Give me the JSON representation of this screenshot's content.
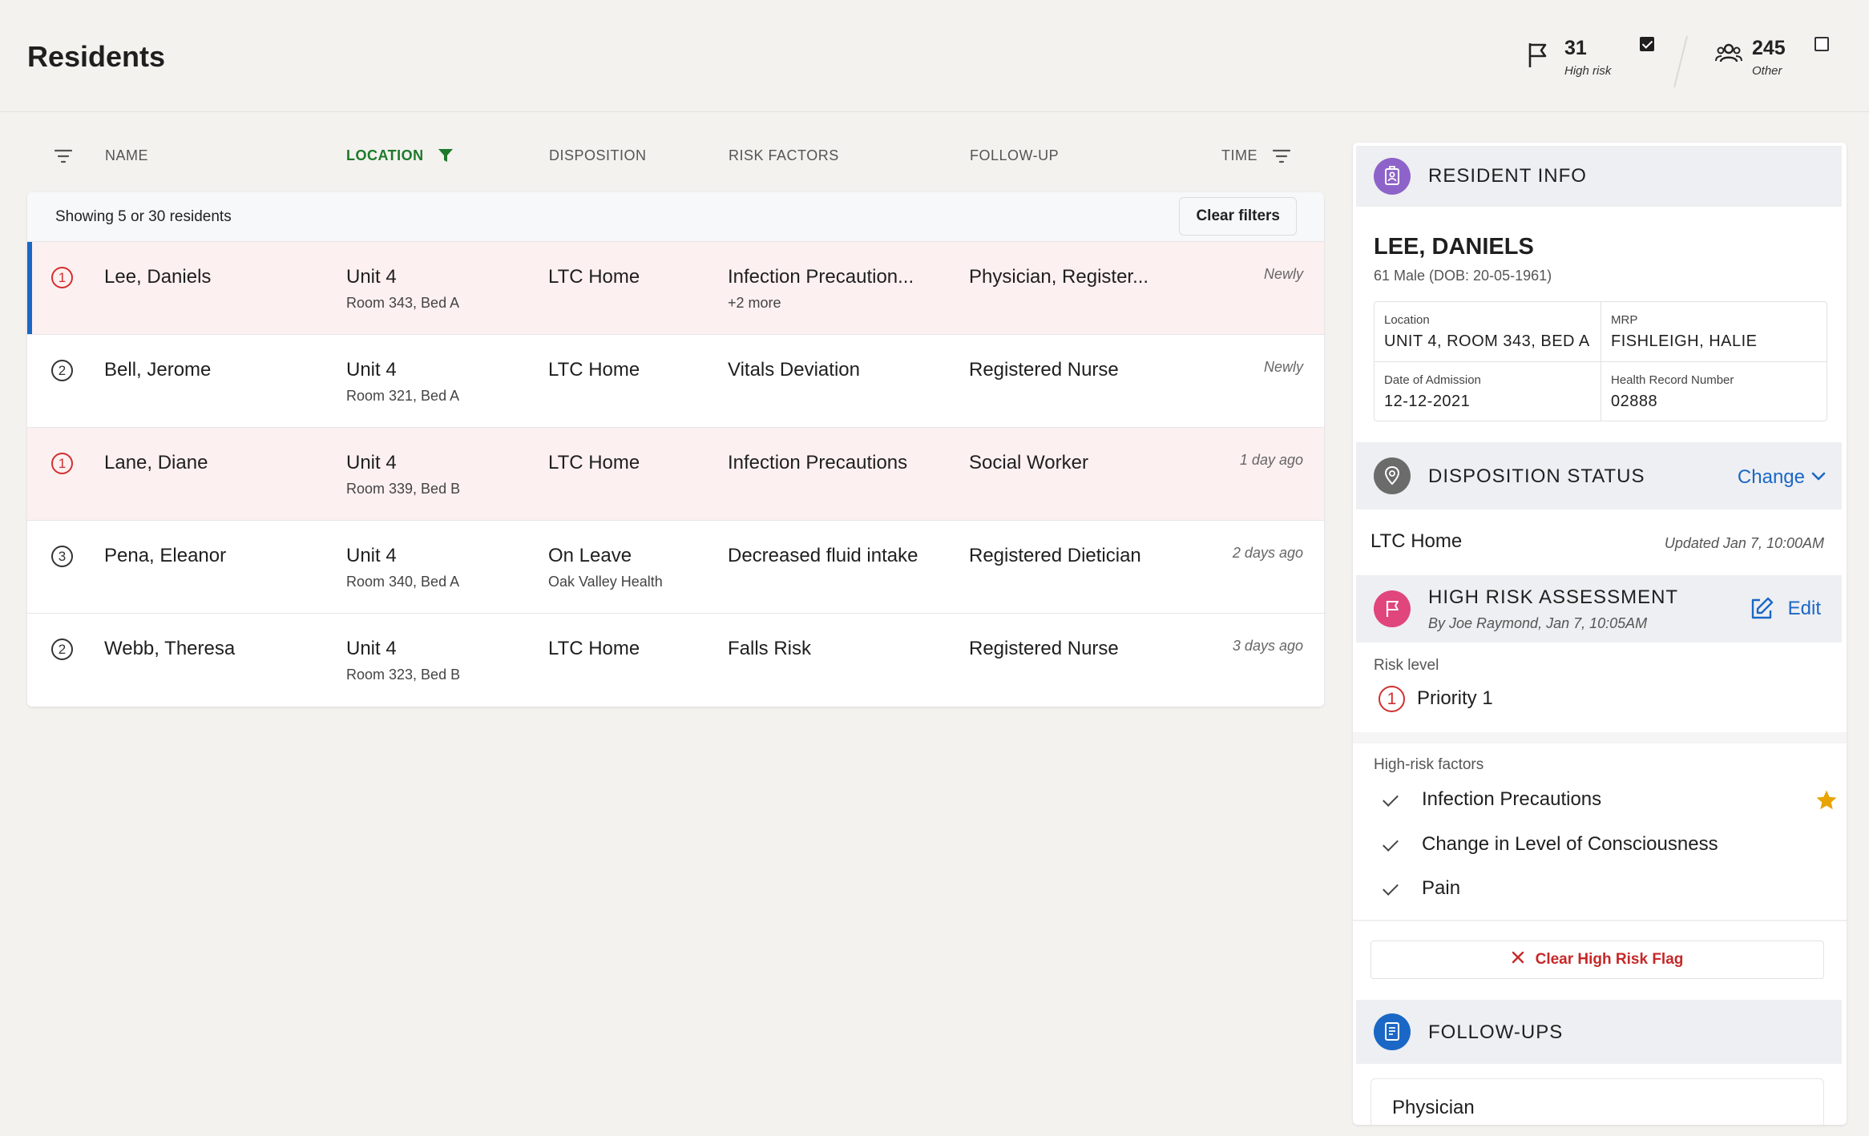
{
  "header": {
    "title": "Residents",
    "high_risk": {
      "count": "31",
      "label": "High risk",
      "checked": true,
      "icon": "flag-icon"
    },
    "other": {
      "count": "245",
      "label": "Other",
      "checked": false,
      "icon": "people-icon"
    }
  },
  "table": {
    "columns": {
      "name": "NAME",
      "location": "LOCATION",
      "disposition": "DISPOSITION",
      "risk_factors": "RISK FACTORS",
      "follow_up": "FOLLOW-UP",
      "time": "TIME"
    },
    "active_filter_column": "location",
    "showing": "Showing 5 or 30 residents",
    "clear_filters": "Clear filters",
    "rows": [
      {
        "priority": "1",
        "name": "Lee, Daniels",
        "unit": "Unit 4",
        "room": "Room 343, Bed A",
        "disposition": "LTC Home",
        "disposition_sub": "",
        "risk": "Infection Precaution...",
        "risk_more": "+2 more",
        "follow_up": "Physician, Register...",
        "time": "Newly",
        "flagged": true,
        "selected": true
      },
      {
        "priority": "2",
        "name": "Bell, Jerome",
        "unit": "Unit 4",
        "room": "Room 321, Bed A",
        "disposition": "LTC Home",
        "disposition_sub": "",
        "risk": "Vitals Deviation",
        "risk_more": "",
        "follow_up": "Registered Nurse",
        "time": "Newly",
        "flagged": false,
        "selected": false
      },
      {
        "priority": "1",
        "name": "Lane, Diane",
        "unit": "Unit 4",
        "room": "Room 339, Bed B",
        "disposition": "LTC Home",
        "disposition_sub": "",
        "risk": "Infection Precautions",
        "risk_more": "",
        "follow_up": "Social Worker",
        "time": "1 day ago",
        "flagged": true,
        "selected": false
      },
      {
        "priority": "3",
        "name": "Pena, Eleanor",
        "unit": "Unit 4",
        "room": "Room 340, Bed A",
        "disposition": "On Leave",
        "disposition_sub": "Oak Valley Health",
        "risk": "Decreased fluid intake",
        "risk_more": "",
        "follow_up": "Registered Dietician",
        "time": "2 days ago",
        "flagged": false,
        "selected": false
      },
      {
        "priority": "2",
        "name": "Webb, Theresa",
        "unit": "Unit 4",
        "room": "Room 323, Bed B",
        "disposition": "LTC Home",
        "disposition_sub": "",
        "risk": "Falls Risk",
        "risk_more": "",
        "follow_up": "Registered Nurse",
        "time": "3 days ago",
        "flagged": false,
        "selected": false
      }
    ]
  },
  "panel": {
    "resident_info": {
      "title": "RESIDENT INFO",
      "name": "LEE, DANIELS",
      "demographics": "61 Male (DOB: 20-05-1961)",
      "location_label": "Location",
      "location_value": "UNIT 4, ROOM 343, BED A",
      "mrp_label": "MRP",
      "mrp_value": "FISHLEIGH, HALIE",
      "admission_label": "Date of Admission",
      "admission_value": "12-12-2021",
      "hrn_label": "Health Record Number",
      "hrn_value": "02888"
    },
    "disposition": {
      "title": "DISPOSITION STATUS",
      "change_label": "Change",
      "value": "LTC Home",
      "updated": "Updated Jan 7, 10:00AM"
    },
    "assessment": {
      "title": "HIGH RISK ASSESSMENT",
      "by": "By Joe Raymond, Jan 7, 10:05AM",
      "edit_label": "Edit",
      "risk_level_label": "Risk level",
      "priority_number": "1",
      "priority_text": "Priority 1",
      "factors_label": "High-risk factors",
      "factors": [
        "Infection Precautions",
        "Change in Level of Consciousness",
        "Pain"
      ],
      "clear_flag_label": "Clear High Risk Flag"
    },
    "followups": {
      "title": "FOLLOW-UPS",
      "first": "Physician"
    }
  },
  "colors": {
    "accent_blue": "#1b67c6",
    "priority_red": "#d32f2f",
    "flag_row_bg": "#fdf0f0",
    "filter_green": "#1d7a2a",
    "resident_icon": "#8e63c9",
    "disposition_icon": "#6b6b6b",
    "assessment_icon": "#e0457b",
    "followups_icon": "#1b67c6",
    "star": "#e8a400"
  }
}
